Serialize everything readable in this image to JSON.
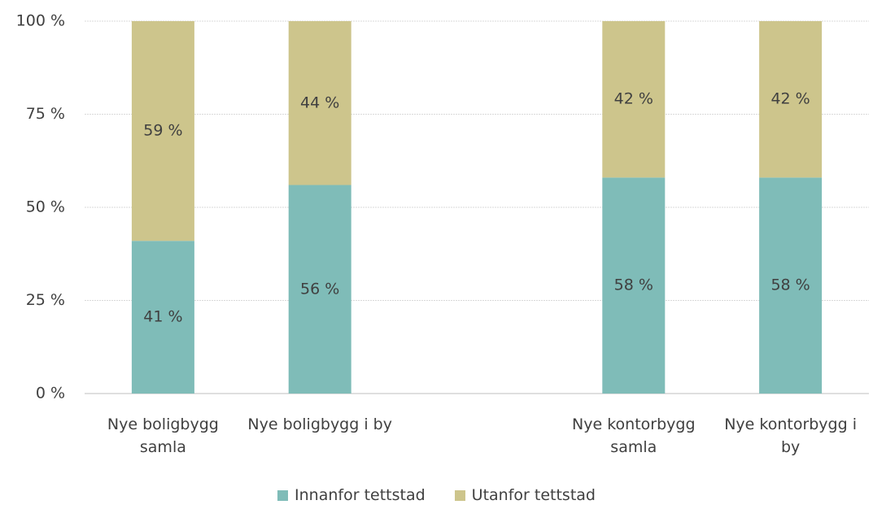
{
  "chart_data": {
    "type": "stacked_bar",
    "categories": [
      "Nye boligbygg samla",
      "Nye boligbygg i by",
      null,
      "Nye kontorbygg samla",
      "Nye kontorbygg i by"
    ],
    "series": [
      {
        "name": "Innanfor tettstad",
        "color": "#7fbcb8",
        "values": [
          41,
          56,
          null,
          58,
          58
        ],
        "value_labels": [
          "41 %",
          "56 %",
          null,
          "58 %",
          "58 %"
        ]
      },
      {
        "name": "Utanfor tettstad",
        "color": "#cdc58c",
        "values": [
          59,
          44,
          null,
          42,
          42
        ],
        "value_labels": [
          "59 %",
          "44 %",
          null,
          "42 %",
          "42 %"
        ]
      }
    ],
    "ylim": [
      0,
      100
    ],
    "yticks": [
      {
        "value": 0,
        "label": "0 %"
      },
      {
        "value": 25,
        "label": "25 %"
      },
      {
        "value": 50,
        "label": "50 %"
      },
      {
        "value": 75,
        "label": "75 %"
      },
      {
        "value": 100,
        "label": "100 %"
      }
    ],
    "grid": true,
    "legend": "bottom"
  }
}
